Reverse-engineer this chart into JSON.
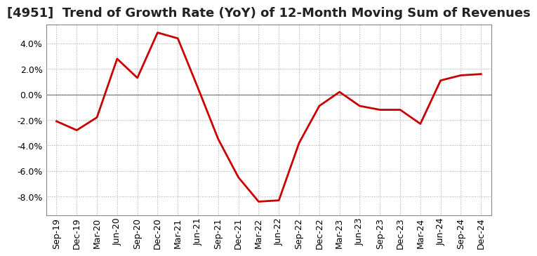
{
  "title": "[4951]  Trend of Growth Rate (YoY) of 12-Month Moving Sum of Revenues",
  "x_labels": [
    "Sep-19",
    "Dec-19",
    "Mar-20",
    "Jun-20",
    "Sep-20",
    "Dec-20",
    "Mar-21",
    "Jun-21",
    "Sep-21",
    "Dec-21",
    "Mar-22",
    "Jun-22",
    "Sep-22",
    "Dec-22",
    "Mar-23",
    "Jun-23",
    "Sep-23",
    "Dec-23",
    "Mar-24",
    "Jun-24",
    "Sep-24",
    "Dec-24"
  ],
  "y_values": [
    -2.1,
    -2.8,
    -1.8,
    2.8,
    1.3,
    4.85,
    4.4,
    0.5,
    -3.5,
    -6.5,
    -8.4,
    -8.3,
    -3.8,
    -0.9,
    0.2,
    -0.9,
    -1.2,
    -1.2,
    -2.3,
    1.1,
    1.5,
    1.6
  ],
  "line_color": "#cc0000",
  "line_width": 2.0,
  "ylim": [
    -9.5,
    5.5
  ],
  "yticks": [
    -8.0,
    -6.0,
    -4.0,
    -2.0,
    0.0,
    2.0,
    4.0
  ],
  "background_color": "#ffffff",
  "grid_color": "#aaaaaa",
  "title_fontsize": 13,
  "tick_fontsize": 9,
  "zero_line_color": "#666666"
}
